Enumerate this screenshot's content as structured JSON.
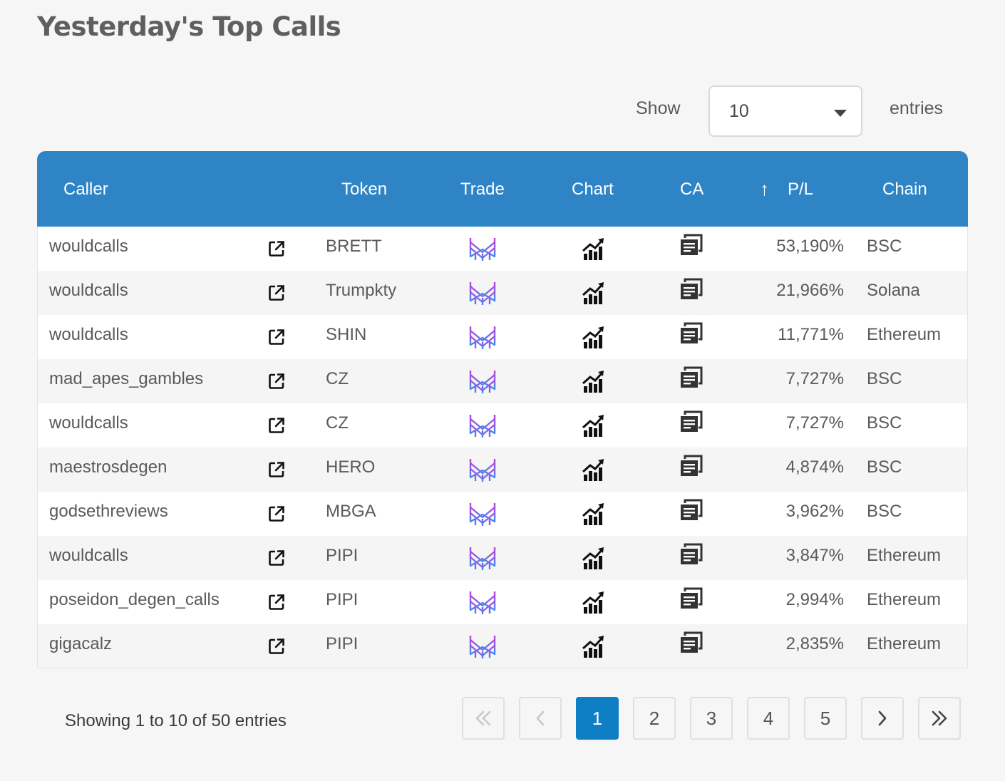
{
  "page": {
    "title": "Yesterday's Top Calls"
  },
  "length": {
    "show_label": "Show",
    "value": "10",
    "entries_label": "entries"
  },
  "table": {
    "headers": {
      "caller": "Caller",
      "token": "Token",
      "trade": "Trade",
      "chart": "Chart",
      "ca": "CA",
      "pl": "P/L",
      "chain": "Chain",
      "sort_icon": "arrow-up-icon"
    },
    "rows": [
      {
        "caller": "wouldcalls",
        "token": "BRETT",
        "pl": "53,190%",
        "chain": "BSC"
      },
      {
        "caller": "wouldcalls",
        "token": "Trumpkty",
        "pl": "21,966%",
        "chain": "Solana"
      },
      {
        "caller": "wouldcalls",
        "token": "SHIN",
        "pl": "11,771%",
        "chain": "Ethereum"
      },
      {
        "caller": "mad_apes_gambles",
        "token": "CZ",
        "pl": "7,727%",
        "chain": "BSC"
      },
      {
        "caller": "wouldcalls",
        "token": "CZ",
        "pl": "7,727%",
        "chain": "BSC"
      },
      {
        "caller": "maestrosdegen",
        "token": "HERO",
        "pl": "4,874%",
        "chain": "BSC"
      },
      {
        "caller": "godsethreviews",
        "token": "MBGA",
        "pl": "3,962%",
        "chain": "BSC"
      },
      {
        "caller": "wouldcalls",
        "token": "PIPI",
        "pl": "3,847%",
        "chain": "Ethereum"
      },
      {
        "caller": "poseidon_degen_calls",
        "token": "PIPI",
        "pl": "2,994%",
        "chain": "Ethereum"
      },
      {
        "caller": "gigacalz",
        "token": "PIPI",
        "pl": "2,835%",
        "chain": "Ethereum"
      }
    ]
  },
  "footer": {
    "info": "Showing 1 to 10 of 50 entries",
    "pages": [
      "1",
      "2",
      "3",
      "4",
      "5"
    ],
    "current_page": "1"
  },
  "colors": {
    "header_bg": "#2e84c5",
    "active_page": "#0e7fc4"
  }
}
